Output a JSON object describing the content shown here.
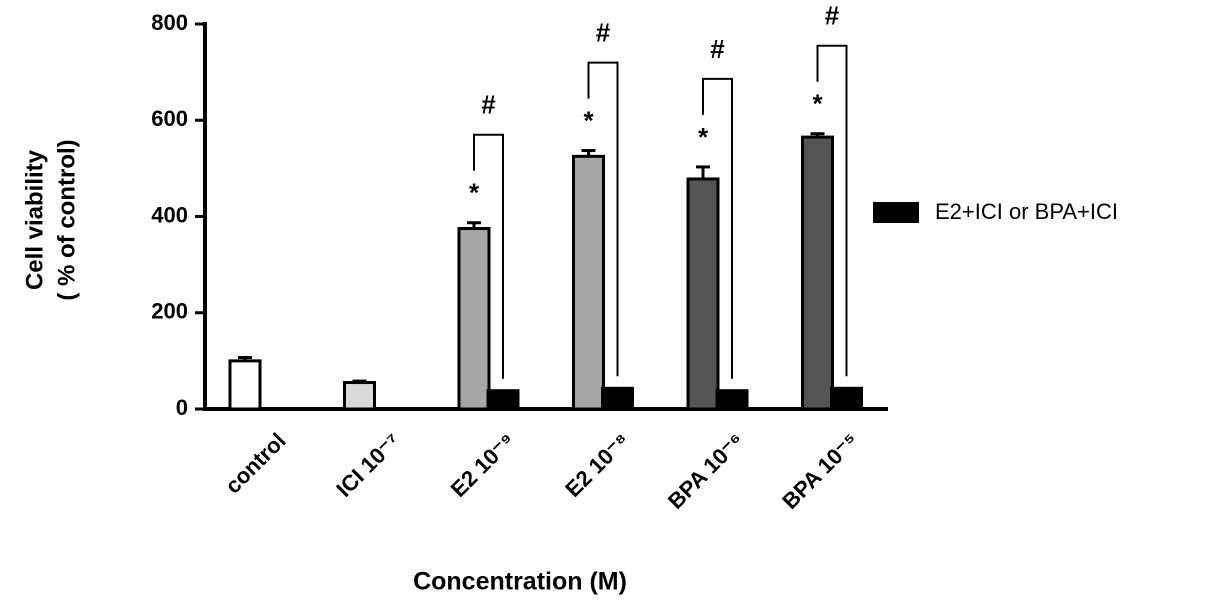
{
  "chart_data": {
    "type": "bar",
    "x_label": "Concentration (M)",
    "y_label": [
      "Cell viability",
      "( % of control)"
    ],
    "categories": [
      "control",
      "ICI 10⁻⁷",
      "E2 10⁻⁹",
      "E2  10⁻⁸",
      "BPA 10⁻⁶",
      "BPA 10⁻⁵"
    ],
    "series": [
      {
        "colors": [
          "#ffffff",
          "#d9d9d9",
          "#a6a6a6",
          "#a6a6a6",
          "#555555",
          "#555555"
        ],
        "values": [
          100,
          55,
          375,
          525,
          478,
          565
        ],
        "errors": [
          7,
          3,
          12,
          12,
          25,
          7
        ]
      },
      {
        "name": "E2+ICI or BPA+ICI",
        "color": "#000000",
        "values": [
          null,
          null,
          38,
          43,
          38,
          43
        ]
      }
    ],
    "significance": [
      null,
      null,
      "*",
      "*",
      "*",
      "*"
    ],
    "comparison": [
      null,
      null,
      "#",
      "#",
      "#",
      "#"
    ],
    "ylim": [
      0,
      800
    ],
    "yticks": [
      0,
      200,
      400,
      600,
      800
    ]
  }
}
